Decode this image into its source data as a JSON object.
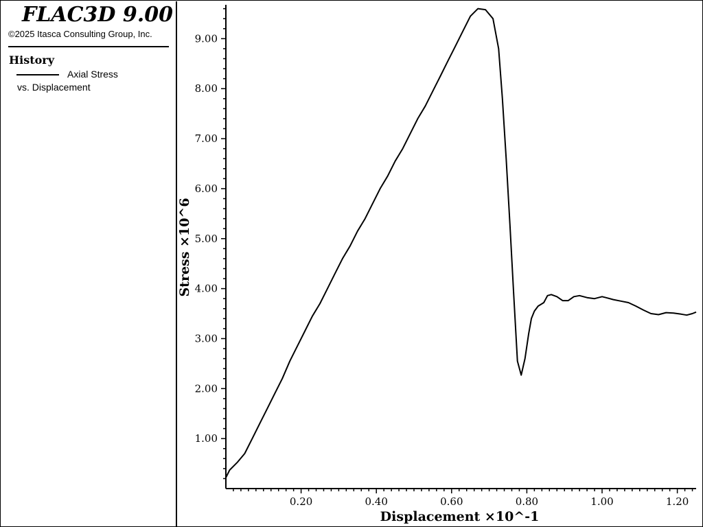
{
  "panel": {
    "app_title": "FLAC3D 9.00",
    "copyright": "©2025 Itasca Consulting Group, Inc.",
    "history_heading": "History",
    "legend_line1": "Axial Stress",
    "legend_line2": "vs. Displacement"
  },
  "chart_data": {
    "type": "line",
    "xlabel": "Displacement ×10^-1",
    "ylabel": "Stress ×10^6",
    "xlim": [
      0.0,
      1.25
    ],
    "ylim": [
      0.0,
      9.65
    ],
    "x_ticks": [
      0.2,
      0.4,
      0.6,
      0.8,
      1.0,
      1.2
    ],
    "x_tick_labels": [
      "0.20",
      "0.40",
      "0.60",
      "0.80",
      "1.00",
      "1.20"
    ],
    "y_ticks": [
      1,
      2,
      3,
      4,
      5,
      6,
      7,
      8,
      9
    ],
    "y_tick_labels": [
      "1.00",
      "2.00",
      "3.00",
      "4.00",
      "5.00",
      "6.00",
      "7.00",
      "8.00",
      "9.00"
    ],
    "grid": false,
    "legend": "left panel",
    "series": [
      {
        "name": "Axial Stress vs. Displacement",
        "color": "#000000",
        "x": [
          0.0,
          0.01,
          0.03,
          0.05,
          0.07,
          0.09,
          0.11,
          0.13,
          0.15,
          0.17,
          0.19,
          0.21,
          0.23,
          0.25,
          0.27,
          0.29,
          0.31,
          0.33,
          0.35,
          0.37,
          0.39,
          0.41,
          0.43,
          0.45,
          0.47,
          0.49,
          0.51,
          0.53,
          0.55,
          0.57,
          0.59,
          0.61,
          0.63,
          0.65,
          0.67,
          0.69,
          0.71,
          0.725,
          0.735,
          0.745,
          0.755,
          0.765,
          0.775,
          0.785,
          0.795,
          0.805,
          0.812,
          0.82,
          0.83,
          0.845,
          0.855,
          0.865,
          0.88,
          0.895,
          0.91,
          0.925,
          0.94,
          0.96,
          0.98,
          1.0,
          1.01,
          1.03,
          1.05,
          1.07,
          1.09,
          1.11,
          1.13,
          1.15,
          1.17,
          1.19,
          1.21,
          1.225,
          1.24,
          1.25
        ],
        "y": [
          0.22,
          0.37,
          0.52,
          0.7,
          1.0,
          1.3,
          1.6,
          1.9,
          2.2,
          2.55,
          2.85,
          3.15,
          3.45,
          3.7,
          4.0,
          4.3,
          4.6,
          4.85,
          5.15,
          5.4,
          5.7,
          6.0,
          6.25,
          6.55,
          6.8,
          7.1,
          7.4,
          7.65,
          7.95,
          8.25,
          8.55,
          8.85,
          9.15,
          9.45,
          9.6,
          9.58,
          9.4,
          8.8,
          7.8,
          6.6,
          5.3,
          3.9,
          2.55,
          2.27,
          2.6,
          3.1,
          3.4,
          3.55,
          3.65,
          3.72,
          3.86,
          3.88,
          3.84,
          3.76,
          3.76,
          3.84,
          3.86,
          3.82,
          3.8,
          3.84,
          3.82,
          3.78,
          3.75,
          3.72,
          3.65,
          3.57,
          3.5,
          3.48,
          3.52,
          3.51,
          3.49,
          3.47,
          3.5,
          3.53
        ]
      }
    ]
  }
}
